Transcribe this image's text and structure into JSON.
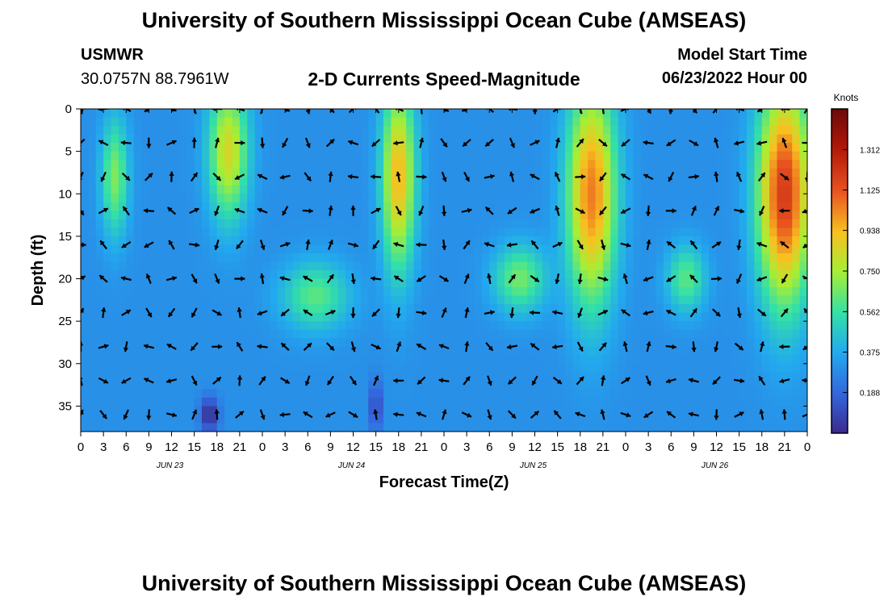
{
  "header": {
    "title": "University of Southern Mississippi Ocean Cube (AMSEAS)",
    "station": "USMWR",
    "coordinates": "30.0757N  88.7961W",
    "subtitle": "2-D Currents Speed-Magnitude",
    "model_start_label": "Model Start Time",
    "model_start_value": "06/23/2022 Hour 00"
  },
  "footer": {
    "title": "University of Southern Mississippi Ocean Cube (AMSEAS)"
  },
  "chart_data": {
    "type": "heatmap",
    "title": "2-D Currents Speed-Magnitude",
    "xlabel": "Forecast Time(Z)",
    "ylabel": "Depth (ft)",
    "x_range_hours": [
      0,
      96
    ],
    "ylim": [
      0,
      38
    ],
    "y_inverted": true,
    "x_tick_labels": [
      "0",
      "3",
      "6",
      "9",
      "12",
      "15",
      "18",
      "21",
      "0",
      "3",
      "6",
      "9",
      "12",
      "15",
      "18",
      "21",
      "0",
      "3",
      "6",
      "9",
      "12",
      "15",
      "18",
      "21",
      "0",
      "3",
      "6",
      "9",
      "12",
      "15",
      "18",
      "21",
      "0"
    ],
    "date_labels": [
      {
        "label": "JUN 23",
        "hour": 12
      },
      {
        "label": "JUN 24",
        "hour": 36
      },
      {
        "label": "JUN 25",
        "hour": 60
      },
      {
        "label": "JUN 26",
        "hour": 84
      }
    ],
    "y_ticks": [
      0,
      5,
      10,
      15,
      20,
      25,
      30,
      35
    ],
    "colorbar": {
      "title": "Knots",
      "min": 0,
      "max": 1.5,
      "ticks": [
        "1.312",
        "1.125",
        "0.938",
        "0.750",
        "0.562",
        "0.375",
        "0.188"
      ],
      "tick_values": [
        1.312,
        1.125,
        0.938,
        0.75,
        0.562,
        0.375,
        0.188
      ]
    },
    "vector_depths_ft": [
      0,
      4,
      8,
      12,
      16,
      20,
      24,
      28,
      32,
      36
    ],
    "vector_interval_hours": 3,
    "speed_features": [
      {
        "hour": 4.5,
        "depth": 8,
        "speed": 0.68,
        "sh": 1.8,
        "sd": 7
      },
      {
        "hour": 19.5,
        "depth": 5,
        "speed": 0.85,
        "sh": 2.6,
        "sd": 8
      },
      {
        "hour": 42,
        "depth": 8,
        "speed": 0.95,
        "sh": 2.2,
        "sd": 11
      },
      {
        "hour": 31,
        "depth": 22,
        "speed": 0.62,
        "sh": 4.5,
        "sd": 4
      },
      {
        "hour": 58,
        "depth": 20,
        "speed": 0.66,
        "sh": 3.5,
        "sd": 4
      },
      {
        "hour": 67.5,
        "depth": 10,
        "speed": 1.05,
        "sh": 3.2,
        "sd": 13
      },
      {
        "hour": 80,
        "depth": 20,
        "speed": 0.62,
        "sh": 2.6,
        "sd": 4
      },
      {
        "hour": 93,
        "depth": 10,
        "speed": 1.2,
        "sh": 3.5,
        "sd": 13
      },
      {
        "hour": 17,
        "depth": 36,
        "speed": 0.0,
        "sh": 1.2,
        "sd": 2
      },
      {
        "hour": 39,
        "depth": 35,
        "speed": 0.05,
        "sh": 0.7,
        "sd": 3
      }
    ],
    "background_speed": 0.3
  }
}
